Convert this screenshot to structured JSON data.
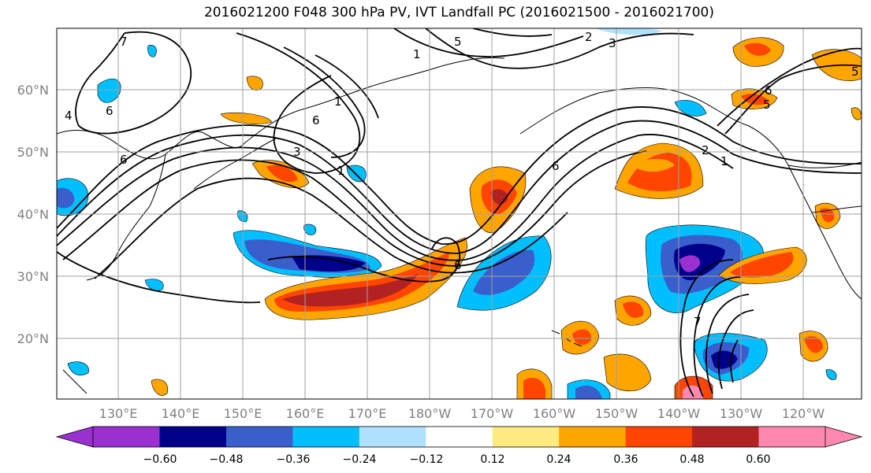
{
  "title": "2016021200 F048 300 hPa PV, IVT Landfall PC (2016021500 - 2016021700)",
  "lat_labels": [
    "60°N",
    "50°N",
    "40°N",
    "30°N",
    "20°N"
  ],
  "lon_labels": [
    "130°E",
    "140°E",
    "150°E",
    "160°E",
    "170°E",
    "180°W",
    "170°W",
    "160°W",
    "150°W",
    "140°W",
    "130°W",
    "120°W"
  ],
  "colorbar": {
    "ticks": [
      "−0.60",
      "−0.48",
      "−0.36",
      "−0.24",
      "−0.12",
      "0.12",
      "0.24",
      "0.36",
      "0.48",
      "0.60"
    ],
    "colors": [
      "#9b30d0",
      "#00008b",
      "#3a5fcd",
      "#00bfff",
      "#b0e2ff",
      "#ffffff",
      "#ffeb80",
      "#ffa500",
      "#ff4500",
      "#b22222",
      "#ff88b0",
      "#ff88b0"
    ]
  },
  "contour_labels": [
    "7",
    "2",
    "3",
    "5",
    "1",
    "1",
    "6",
    "4",
    "6",
    "3",
    "1",
    "6",
    "2",
    "1",
    "6",
    "5",
    "5",
    "6",
    "6",
    "7"
  ],
  "colors": {
    "grid": "#a0a0a0",
    "coast": "#000000"
  }
}
